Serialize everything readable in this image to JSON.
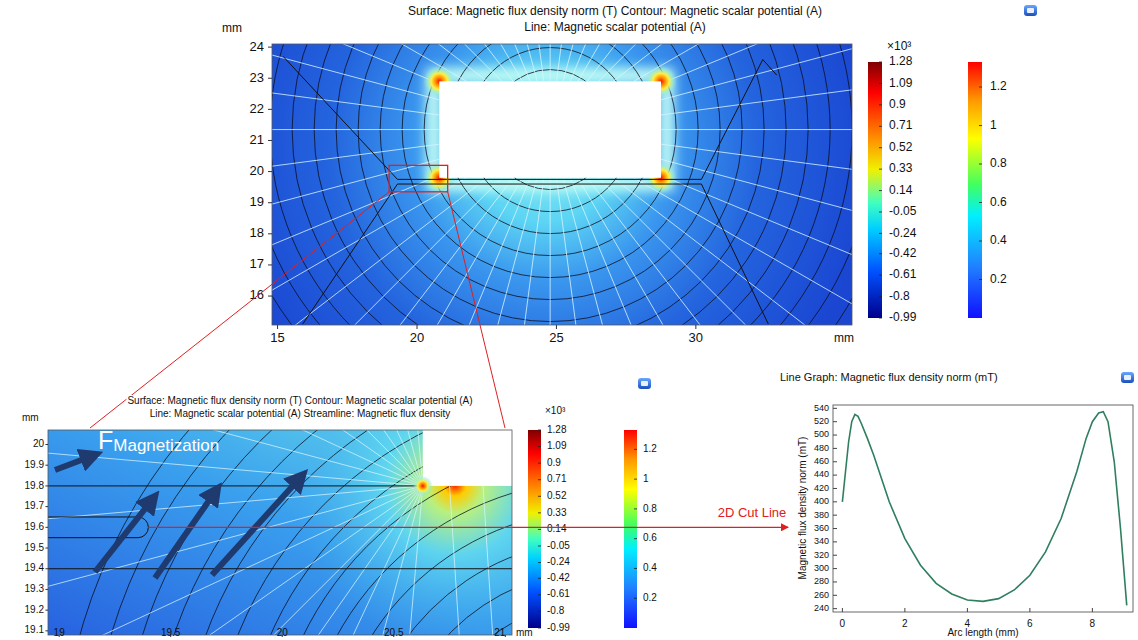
{
  "figure": {
    "main": {
      "title": [
        "Surface: Magnetic flux density norm (T)  Contour: Magnetic scalar potential (A)",
        "Line: Magnetic scalar potential (A)"
      ],
      "unit": "mm",
      "xlim": [
        14.8,
        35.6
      ],
      "ylim": [
        15.07,
        24.1
      ],
      "xticks": [
        15,
        20,
        25,
        30
      ],
      "yticks": [
        16,
        17,
        18,
        19,
        20,
        21,
        22,
        23,
        24
      ]
    },
    "zoom": {
      "title": [
        "Surface: Magnetic flux density norm (T)  Contour: Magnetic scalar potential (A)",
        "Line: Magnetic scalar potential (A)  Streamline: Magnetic flux density"
      ],
      "unit": "mm",
      "xlim": [
        18.95,
        21.03
      ],
      "ylim": [
        19.08,
        20.07
      ],
      "xticks": [
        19,
        19.5,
        20,
        20.5,
        21
      ],
      "yticks": [
        19.1,
        19.2,
        19.3,
        19.4,
        19.5,
        19.6,
        19.7,
        19.8,
        19.9,
        20
      ],
      "force_label": "F",
      "force_subscript": "Magnetization"
    },
    "colorbars": {
      "potential": {
        "multiplier": "×10³",
        "range": [
          -0.99,
          1.28
        ],
        "ticks": [
          1.28,
          1.09,
          0.9,
          0.71,
          0.52,
          0.33,
          0.14,
          -0.05,
          -0.24,
          -0.42,
          -0.61,
          -0.8,
          -0.99
        ]
      },
      "flux": {
        "range": [
          0,
          1.33
        ],
        "ticks": [
          1.2,
          1,
          0.8,
          0.6,
          0.4,
          0.2
        ]
      }
    },
    "cut_line_label": "2D Cut Line"
  },
  "chart_data": {
    "type": "line",
    "title": "Line Graph: Magnetic flux density norm (mT)",
    "x_label": "Arc length (mm)",
    "y_label": "Magnetic flux density norm (mT)",
    "x": [
      0,
      0.1,
      0.2,
      0.3,
      0.4,
      0.5,
      0.6,
      0.8,
      1,
      1.5,
      2,
      2.5,
      3,
      3.5,
      4,
      4.5,
      5,
      5.5,
      6,
      6.5,
      7,
      7.5,
      7.8,
      8,
      8.2,
      8.35,
      8.5,
      8.7,
      8.9,
      9.1
    ],
    "values": [
      400,
      445,
      490,
      520,
      531,
      528,
      518,
      495,
      470,
      400,
      345,
      305,
      278,
      262,
      253,
      251,
      255,
      268,
      290,
      325,
      375,
      445,
      495,
      520,
      533,
      535,
      520,
      460,
      360,
      245
    ],
    "color": "#2f7f5f",
    "xlim": [
      -0.3,
      9.3
    ],
    "ylim": [
      235,
      545
    ],
    "xticks": [
      0,
      2,
      4,
      6,
      8
    ],
    "yticks": [
      240,
      260,
      280,
      300,
      320,
      340,
      360,
      380,
      400,
      420,
      440,
      460,
      480,
      500,
      520,
      540
    ],
    "grid": false
  }
}
